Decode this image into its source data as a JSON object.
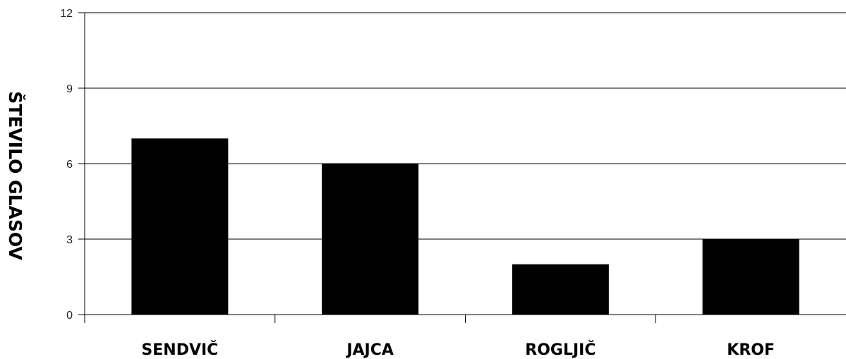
{
  "chart_data": {
    "type": "bar",
    "title": "",
    "xlabel": "",
    "ylabel": "ŠTEVILO GLASOV",
    "categories": [
      "SENDVIČ",
      "JAJCA",
      "ROGLJIČ",
      "KROF"
    ],
    "values": [
      7,
      6,
      2,
      3
    ],
    "ylim": [
      0,
      12
    ],
    "yticks": [
      0,
      3,
      6,
      9,
      12
    ],
    "grid": "horizontal",
    "colors": {
      "bar": "#000000",
      "grid": "#000000",
      "axis": "#000000",
      "tick_text": "#222222"
    }
  }
}
